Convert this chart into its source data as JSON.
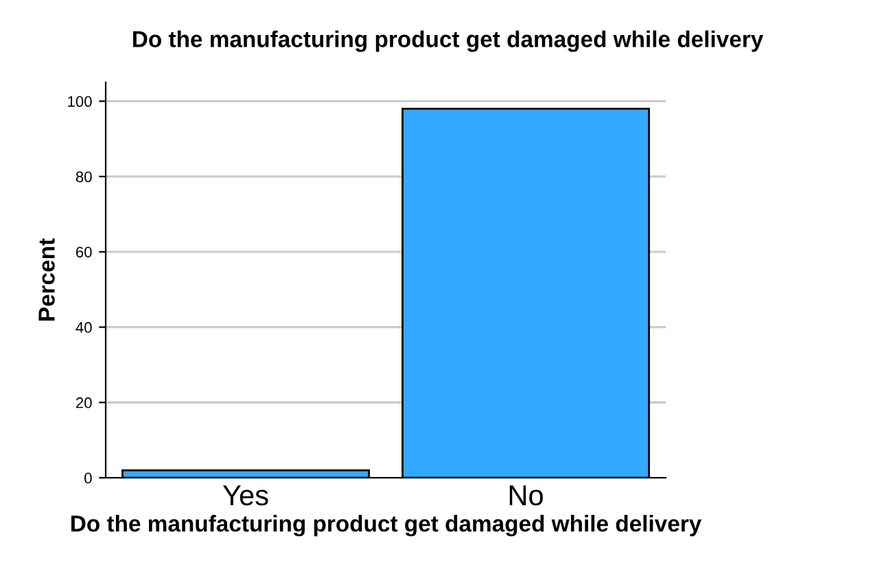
{
  "chart_data": {
    "type": "bar",
    "title": "Do the manufacturing product get damaged while delivery",
    "xlabel": "Do the manufacturing product get damaged while delivery",
    "ylabel": "Percent",
    "categories": [
      "Yes",
      "No"
    ],
    "values": [
      2,
      98
    ],
    "color": "#33aaff",
    "ylim": [
      0,
      105
    ],
    "yticks": [
      0,
      20,
      40,
      60,
      80,
      100
    ],
    "grid": "y"
  }
}
